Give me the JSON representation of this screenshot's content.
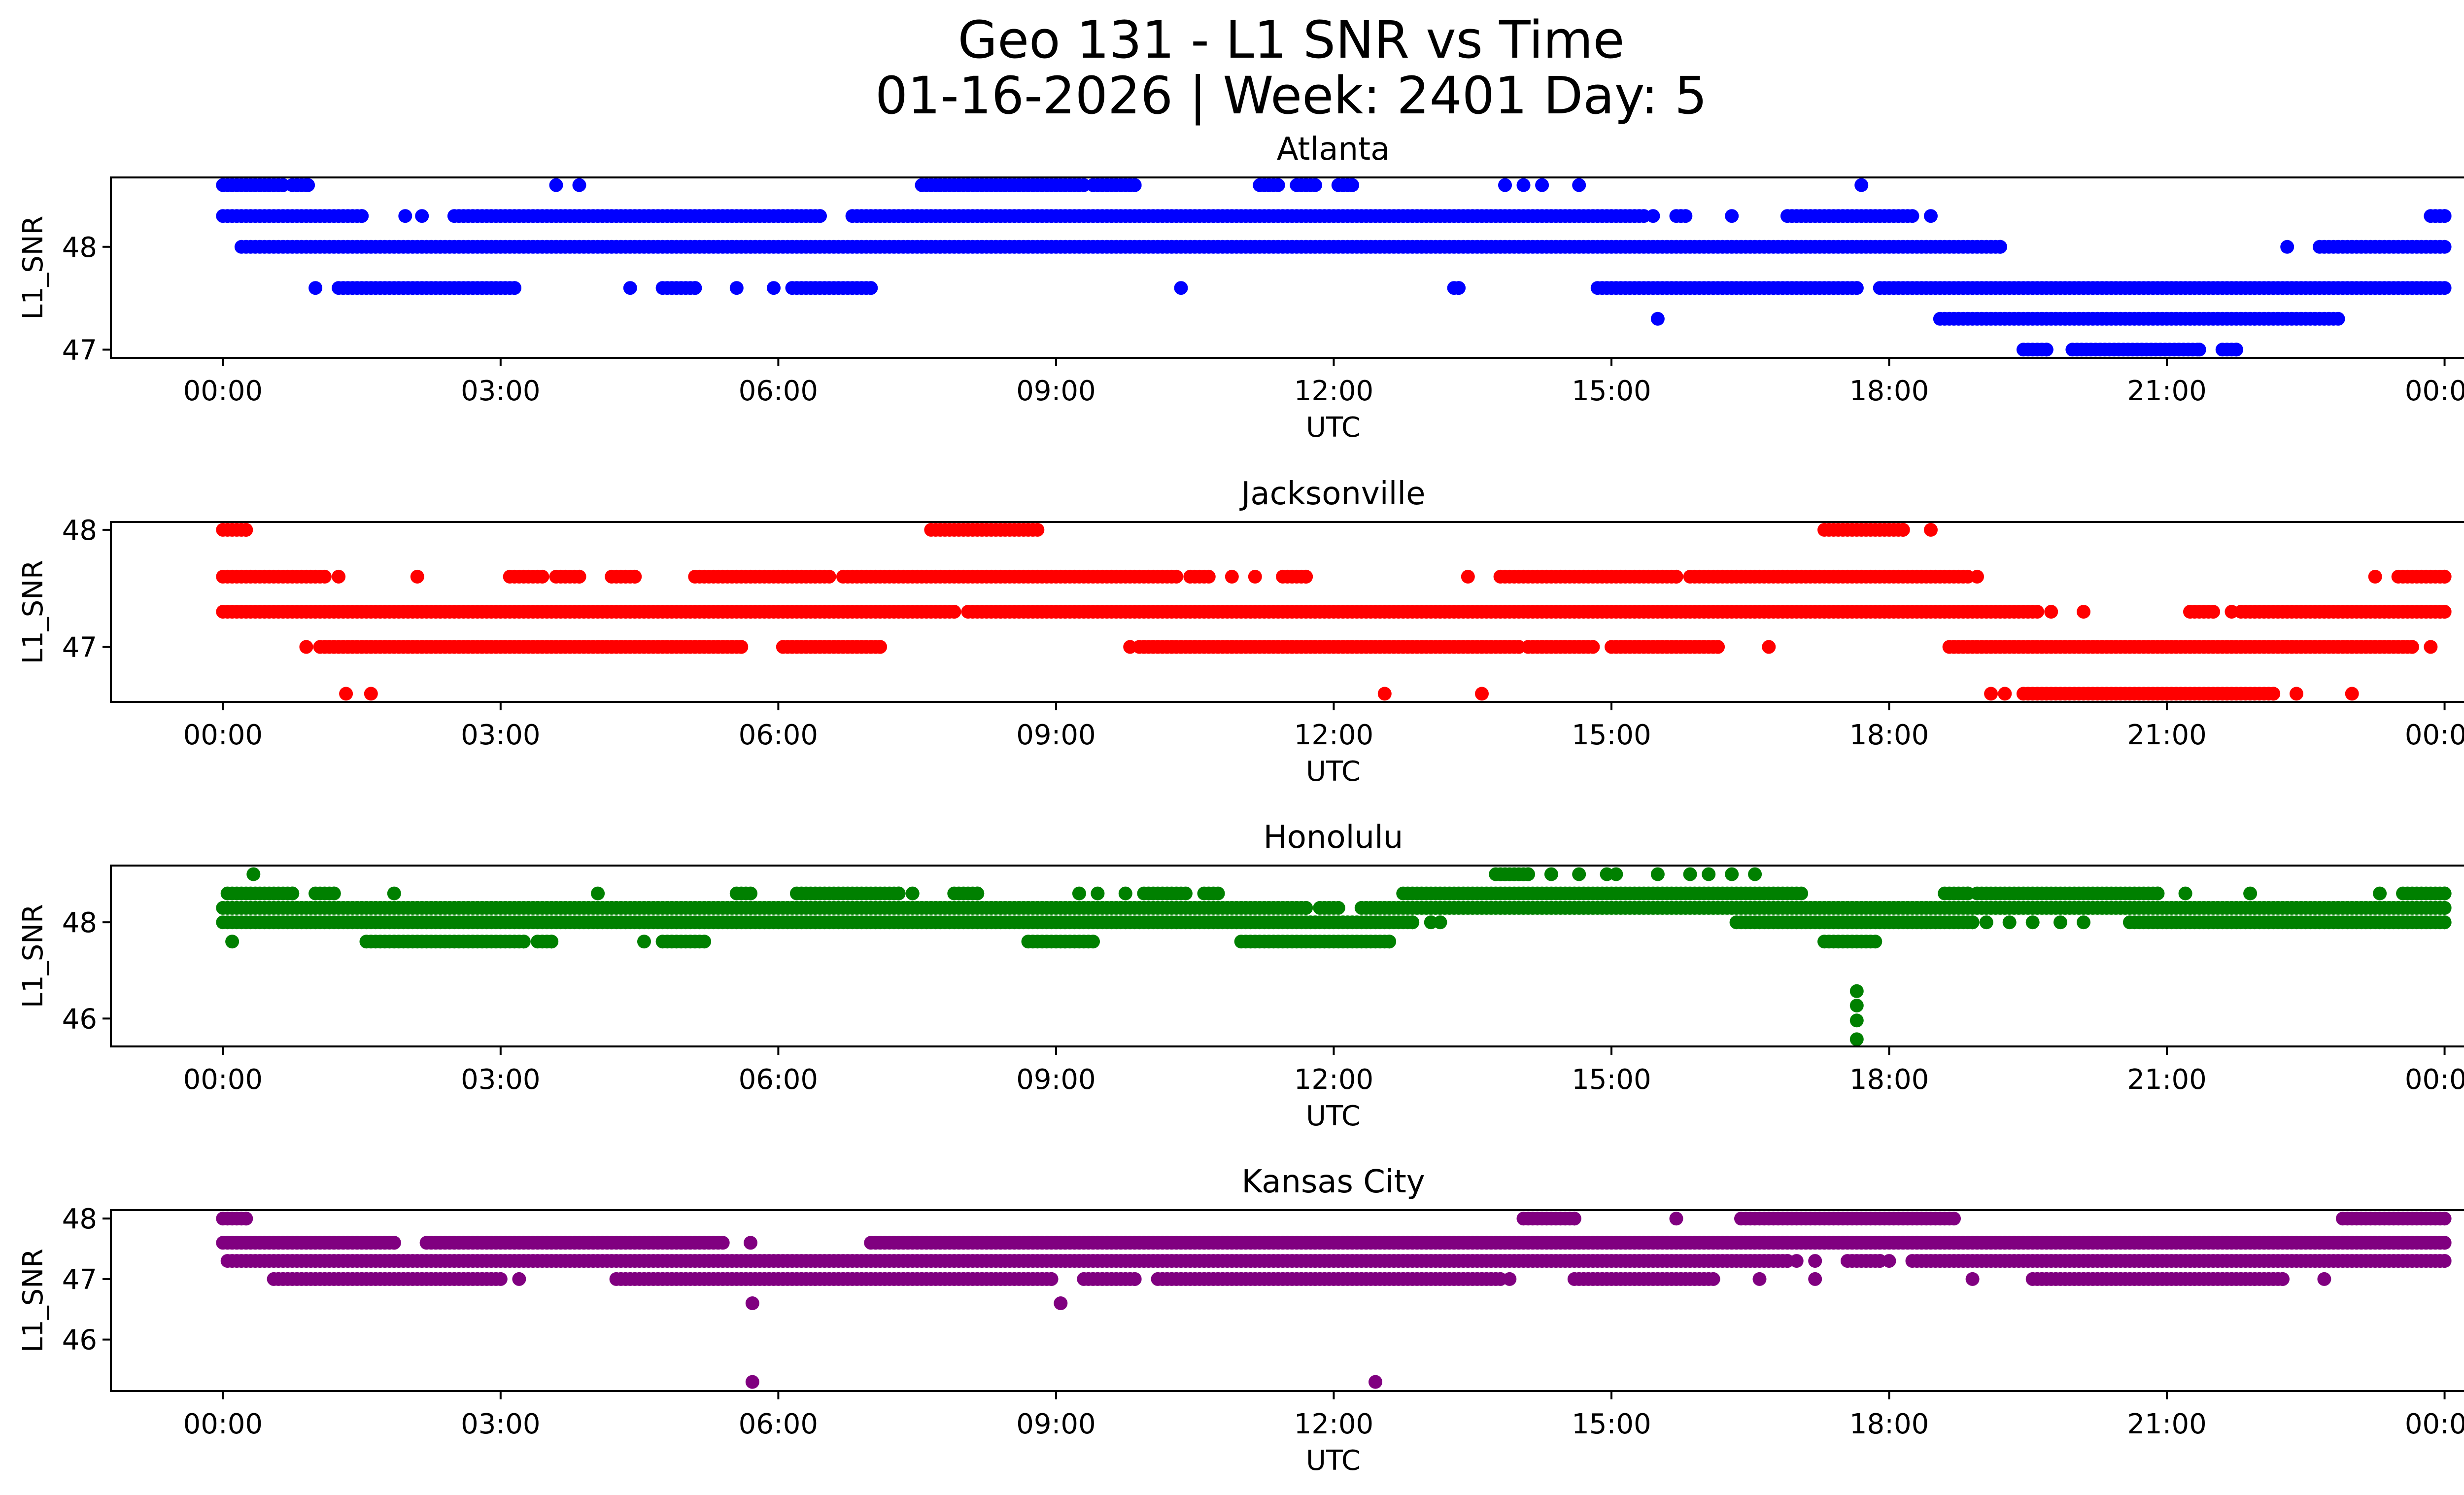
{
  "chart_data": {
    "type": "scatter",
    "title": "Geo 131 - L1 SNR vs Time",
    "subtitle": "01-16-2026 | Week: 2401 Day: 5",
    "x_unit": "hours (UTC)",
    "xlim": [
      -1.21,
      25.2
    ],
    "xticks": [
      0,
      3,
      6,
      9,
      12,
      15,
      18,
      21,
      24
    ],
    "xtick_labels": [
      "00:00",
      "03:00",
      "06:00",
      "09:00",
      "12:00",
      "15:00",
      "18:00",
      "21:00",
      "00:00"
    ],
    "xlabel": "UTC",
    "ylabel": "L1_SNR",
    "grid": false,
    "legend": "none",
    "sample_step_hours": 0.05,
    "panels": [
      {
        "name": "Atlanta",
        "color": "#0000ff",
        "ylim": [
          46.92,
          48.675
        ],
        "yticks": [
          47,
          48
        ],
        "ytick_labels": [
          "47",
          "48"
        ],
        "levels": [
          {
            "y": 48.6,
            "segments": [
              [
                0.0,
                0.65
              ],
              [
                0.75,
                0.92
              ],
              [
                7.55,
                9.3
              ],
              [
                9.4,
                9.85
              ],
              [
                11.2,
                11.4
              ],
              [
                11.6,
                11.8
              ],
              [
                12.05,
                12.2
              ]
            ],
            "points": [
              3.6,
              3.85,
              13.85,
              14.05,
              14.25,
              14.65,
              17.7
            ]
          },
          {
            "y": 48.3,
            "segments": [
              [
                0.0,
                1.5
              ],
              [
                2.5,
                6.45
              ],
              [
                6.8,
                15.35
              ],
              [
                15.7,
                15.8
              ],
              [
                16.9,
                18.25
              ],
              [
                23.85,
                24.0
              ]
            ],
            "points": [
              1.97,
              2.15,
              15.45,
              16.3,
              18.45
            ]
          },
          {
            "y": 48.0,
            "segments": [
              [
                0.2,
                19.2
              ],
              [
                22.65,
                24.0
              ]
            ],
            "points": [
              22.3
            ]
          },
          {
            "y": 47.6,
            "segments": [
              [
                1.25,
                3.15
              ],
              [
                4.75,
                5.1
              ],
              [
                6.15,
                7.0
              ],
              [
                13.3,
                13.35
              ],
              [
                14.85,
                17.65
              ],
              [
                17.9,
                24.0
              ]
            ],
            "points": [
              1.0,
              4.4,
              5.55,
              5.95,
              10.35
            ]
          },
          {
            "y": 47.3,
            "segments": [
              [
                18.55,
                22.85
              ]
            ],
            "points": [
              15.5
            ]
          },
          {
            "y": 47.0,
            "segments": [
              [
                19.45,
                19.7
              ],
              [
                19.98,
                21.35
              ],
              [
                21.6,
                21.75
              ]
            ],
            "points": []
          }
        ]
      },
      {
        "name": "Jacksonville",
        "color": "#ff0000",
        "ylim": [
          46.53,
          48.067
        ],
        "yticks": [
          47,
          48
        ],
        "ytick_labels": [
          "47",
          "48"
        ],
        "levels": [
          {
            "y": 48.0,
            "segments": [
              [
                0.0,
                0.25
              ],
              [
                7.65,
                8.8
              ],
              [
                17.3,
                18.15
              ]
            ],
            "points": [
              18.45
            ]
          },
          {
            "y": 47.6,
            "segments": [
              [
                0.0,
                1.1
              ],
              [
                3.1,
                3.45
              ],
              [
                3.6,
                3.85
              ],
              [
                4.2,
                4.45
              ],
              [
                5.1,
                6.55
              ],
              [
                6.7,
                10.3
              ],
              [
                10.45,
                10.65
              ],
              [
                11.45,
                11.7
              ],
              [
                13.8,
                15.7
              ],
              [
                15.85,
                18.85
              ],
              [
                23.5,
                24.0
              ]
            ],
            "points": [
              1.25,
              2.1,
              10.9,
              11.15,
              13.45,
              18.95,
              23.25
            ]
          },
          {
            "y": 47.3,
            "segments": [
              [
                0.0,
                7.9
              ],
              [
                8.05,
                19.6
              ],
              [
                21.25,
                21.5
              ],
              [
                21.8,
                24.0
              ]
            ],
            "points": [
              19.75,
              20.1,
              21.7
            ]
          },
          {
            "y": 47.0,
            "segments": [
              [
                1.05,
                5.6
              ],
              [
                6.05,
                7.1
              ],
              [
                9.9,
                14.0
              ],
              [
                14.1,
                14.8
              ],
              [
                15.0,
                16.15
              ],
              [
                18.65,
                23.65
              ]
            ],
            "points": [
              0.9,
              9.8,
              16.7,
              23.85
            ]
          },
          {
            "y": 46.6,
            "segments": [
              [
                19.45,
                22.15
              ]
            ],
            "points": [
              1.33,
              1.6,
              12.55,
              13.6,
              19.1,
              19.25,
              22.4,
              23.0
            ]
          }
        ]
      },
      {
        "name": "Honolulu",
        "color": "#008000",
        "ylim": [
          45.42,
          49.18
        ],
        "yticks": [
          46,
          48
        ],
        "ytick_labels": [
          "46",
          "48"
        ],
        "levels": [
          {
            "y": 49.0,
            "segments": [
              [
                13.75,
                14.1
              ]
            ],
            "points": [
              0.33,
              14.35,
              14.65,
              14.95,
              15.05,
              15.5,
              15.85,
              16.05,
              16.3,
              16.55
            ]
          },
          {
            "y": 48.6,
            "segments": [
              [
                0.05,
                0.75
              ],
              [
                1.0,
                1.2
              ],
              [
                5.55,
                5.7
              ],
              [
                6.2,
                7.3
              ],
              [
                7.9,
                8.15
              ],
              [
                9.95,
                10.4
              ],
              [
                10.6,
                10.75
              ],
              [
                12.75,
                17.05
              ],
              [
                18.6,
                18.85
              ],
              [
                18.95,
                20.9
              ],
              [
                23.55,
                24.0
              ]
            ],
            "points": [
              1.85,
              4.05,
              7.45,
              9.25,
              9.45,
              9.75,
              21.2,
              21.9,
              23.3
            ]
          },
          {
            "y": 48.3,
            "segments": [
              [
                0.0,
                11.7
              ],
              [
                11.85,
                12.05
              ],
              [
                12.3,
                24.0
              ]
            ],
            "points": []
          },
          {
            "y": 48.0,
            "segments": [
              [
                0.0,
                12.85
              ],
              [
                16.35,
                18.9
              ],
              [
                20.6,
                24.0
              ]
            ],
            "points": [
              13.05,
              13.15,
              19.05,
              19.3,
              19.55,
              19.85,
              20.1
            ]
          },
          {
            "y": 47.6,
            "segments": [
              [
                1.55,
                3.25
              ],
              [
                3.4,
                3.55
              ],
              [
                4.75,
                5.2
              ],
              [
                8.7,
                9.4
              ],
              [
                11.0,
                12.6
              ],
              [
                17.3,
                17.85
              ]
            ],
            "points": [
              0.1,
              4.55
            ]
          },
          {
            "y": 46.57,
            "segments": [],
            "points": [
              17.65
            ]
          },
          {
            "y": 46.27,
            "segments": [],
            "points": [
              17.65
            ]
          },
          {
            "y": 45.96,
            "segments": [],
            "points": [
              17.65
            ]
          },
          {
            "y": 45.57,
            "segments": [],
            "points": [
              17.65
            ]
          }
        ]
      },
      {
        "name": "Kansas City",
        "color": "#800080",
        "ylim": [
          45.15,
          48.14
        ],
        "yticks": [
          46,
          47,
          48
        ],
        "ytick_labels": [
          "46",
          "47",
          "48"
        ],
        "levels": [
          {
            "y": 48.0,
            "segments": [
              [
                0.0,
                0.25
              ],
              [
                14.05,
                14.6
              ],
              [
                16.4,
                18.7
              ],
              [
                22.9,
                24.0
              ]
            ],
            "points": [
              15.7
            ]
          },
          {
            "y": 47.6,
            "segments": [
              [
                0.0,
                1.85
              ],
              [
                2.2,
                5.4
              ],
              [
                7.0,
                24.0
              ]
            ],
            "points": [
              5.7
            ]
          },
          {
            "y": 47.3,
            "segments": [
              [
                0.05,
                16.9
              ],
              [
                17.55,
                17.9
              ],
              [
                18.25,
                24.0
              ]
            ],
            "points": [
              17.0,
              17.2,
              18.0
            ]
          },
          {
            "y": 47.0,
            "segments": [
              [
                0.55,
                3.0
              ],
              [
                4.25,
                8.95
              ],
              [
                9.3,
                9.85
              ],
              [
                10.1,
                13.8
              ],
              [
                14.6,
                16.1
              ],
              [
                19.55,
                22.25
              ]
            ],
            "points": [
              3.2,
              13.9,
              16.6,
              17.2,
              18.9,
              22.7
            ]
          },
          {
            "y": 46.6,
            "segments": [],
            "points": [
              5.72,
              9.05
            ]
          },
          {
            "y": 45.3,
            "segments": [],
            "points": [
              5.72,
              12.45
            ]
          }
        ]
      }
    ]
  }
}
